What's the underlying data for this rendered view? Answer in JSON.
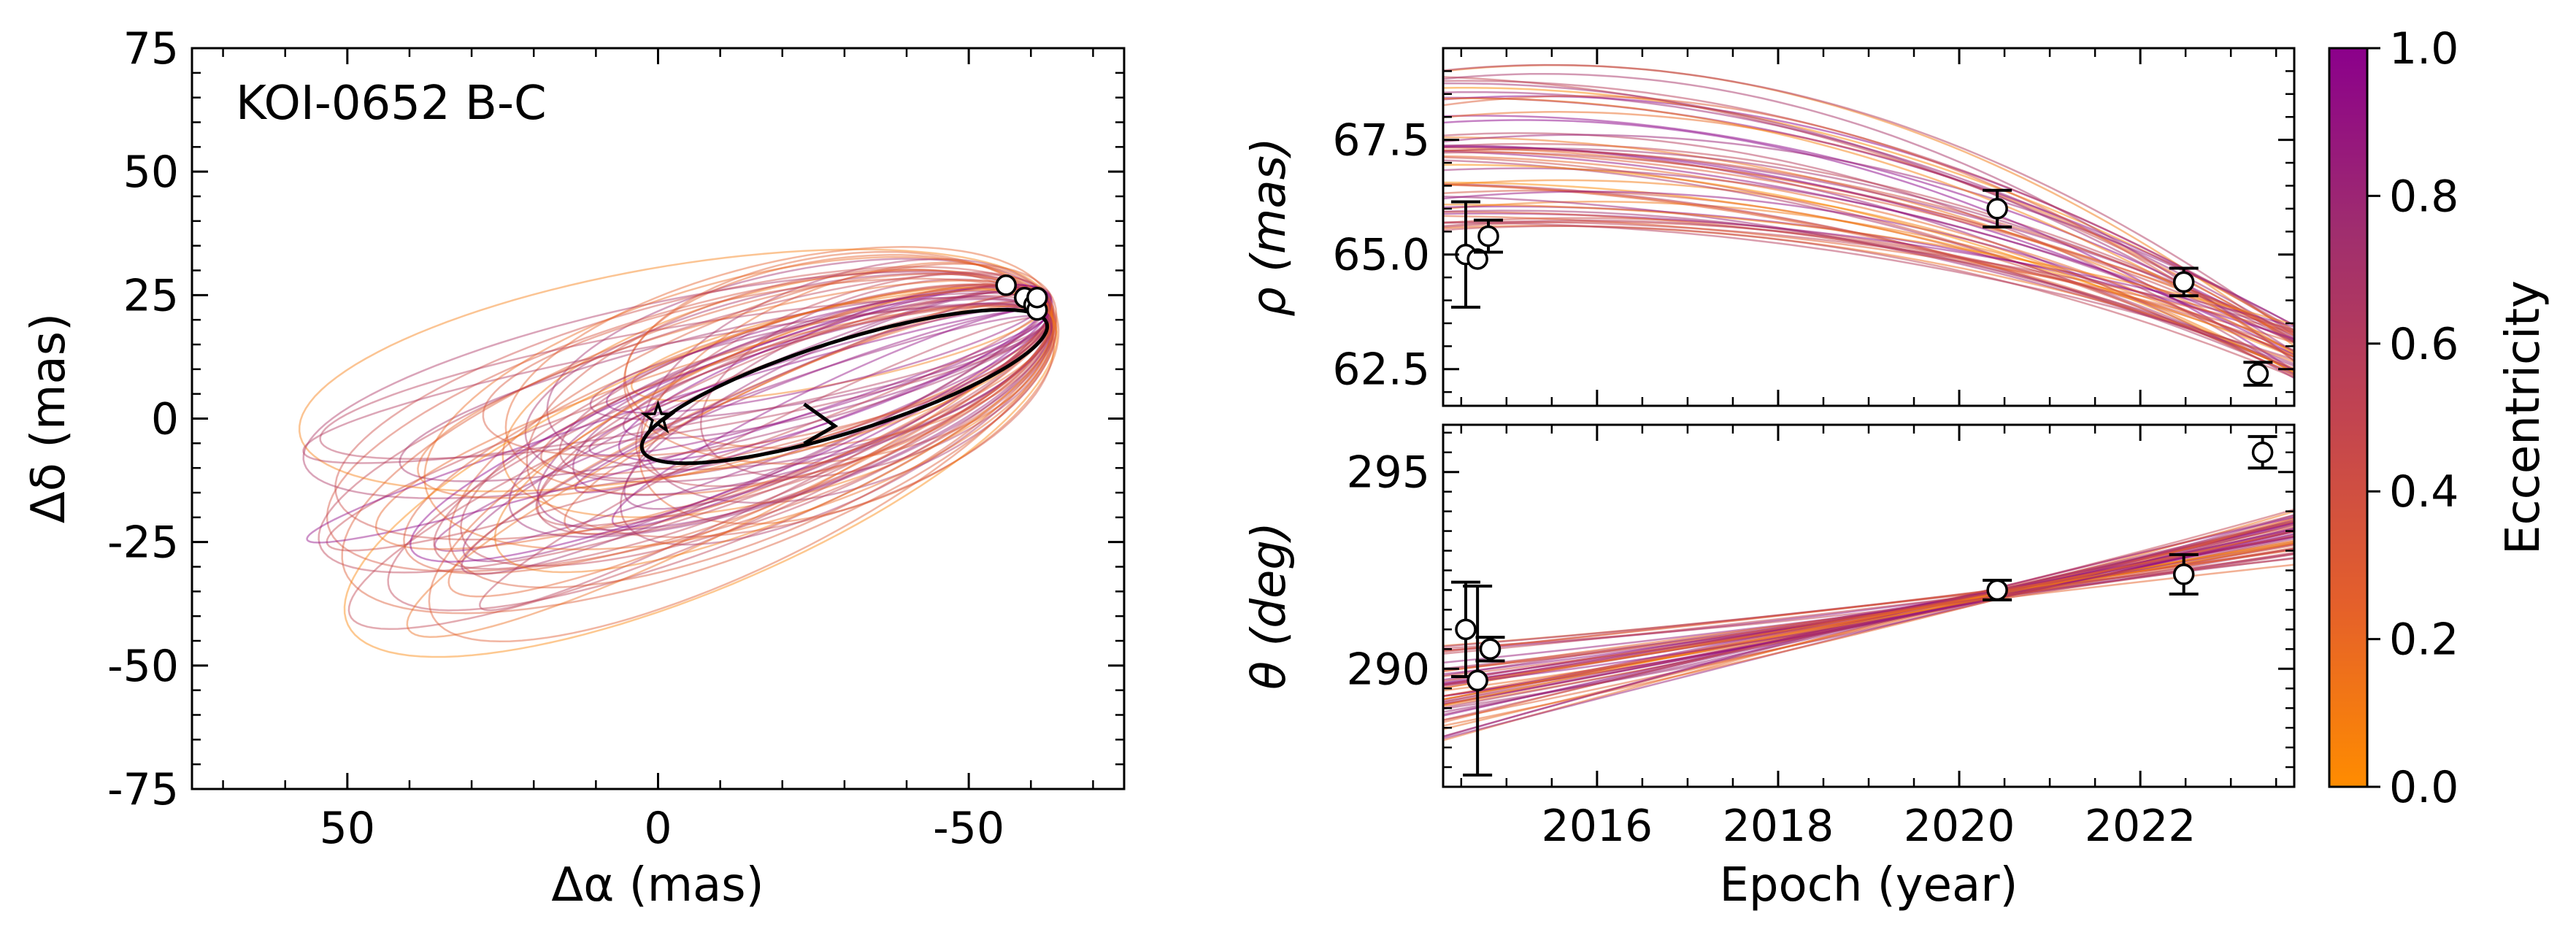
{
  "chart_data": [
    {
      "type": "scatter",
      "id": "orbit",
      "annotation": "KOI-0652 B-C",
      "xlabel": "Δα (mas)",
      "ylabel": "Δδ (mas)",
      "xlim": [
        75,
        -75
      ],
      "ylim": [
        -75,
        75
      ],
      "xticks": [
        50,
        0,
        -50
      ],
      "xtick_labels": [
        "50",
        "0",
        "-50"
      ],
      "yticks": [
        75,
        50,
        25,
        0,
        -25,
        -50,
        -75
      ],
      "ytick_labels": [
        "75",
        "50",
        "25",
        "0",
        "-25",
        "-50",
        "-75"
      ],
      "primary_star": {
        "x": 0,
        "y": 0
      },
      "best_fit_orbit": {
        "center_x": -30,
        "center_y": 6.5,
        "semi_major": 35,
        "semi_minor": 9,
        "pa_deg": 22
      },
      "observations": [
        {
          "x": -56,
          "y": 27
        },
        {
          "x": -59,
          "y": 24.5
        },
        {
          "x": -60.5,
          "y": 23
        },
        {
          "x": -61,
          "y": 22
        },
        {
          "x": -61,
          "y": 24.5
        }
      ],
      "direction": "arrow along orbit"
    },
    {
      "type": "line",
      "id": "separation",
      "ylabel": "ρ (mas)",
      "xlim": [
        2014.3,
        2023.7
      ],
      "ylim": [
        61.7,
        69.5
      ],
      "yticks": [
        62.5,
        65.0,
        67.5
      ],
      "ytick_labels": [
        "62.5",
        "65.0",
        "67.5"
      ],
      "points": [
        {
          "x": 2014.55,
          "y": 65.0,
          "err": 1.15
        },
        {
          "x": 2014.68,
          "y": 64.9,
          "err": 0.0
        },
        {
          "x": 2014.8,
          "y": 65.4,
          "err": 0.35
        },
        {
          "x": 2020.42,
          "y": 66.0,
          "err": 0.4
        },
        {
          "x": 2022.48,
          "y": 64.4,
          "err": 0.3
        },
        {
          "x": 2023.3,
          "y": 62.4,
          "err": 0.25
        }
      ]
    },
    {
      "type": "line",
      "id": "position-angle",
      "ylabel": "θ (deg)",
      "xlabel": "Epoch (year)",
      "xlim": [
        2014.3,
        2023.7
      ],
      "ylim": [
        287.0,
        296.2
      ],
      "xticks": [
        2016,
        2018,
        2020,
        2022
      ],
      "xtick_labels": [
        "2016",
        "2018",
        "2020",
        "2022"
      ],
      "yticks": [
        295,
        290
      ],
      "ytick_labels": [
        "295",
        "290"
      ],
      "points": [
        {
          "x": 2014.55,
          "y": 291.0,
          "err": 1.2
        },
        {
          "x": 2014.68,
          "y": 289.7,
          "err": 2.4
        },
        {
          "x": 2014.82,
          "y": 290.5,
          "err": 0.3
        },
        {
          "x": 2020.42,
          "y": 292.0,
          "err": 0.25
        },
        {
          "x": 2022.48,
          "y": 292.4,
          "err": 0.5
        },
        {
          "x": 2023.35,
          "y": 295.5,
          "err": 0.4
        }
      ]
    },
    {
      "type": "heatmap",
      "id": "colorbar",
      "label": "Eccentricity",
      "range": [
        0.0,
        1.0
      ],
      "ticks": [
        1.0,
        0.8,
        0.6,
        0.4,
        0.2,
        0.0
      ],
      "tick_labels": [
        "1.0",
        "0.8",
        "0.6",
        "0.4",
        "0.2",
        "0.0"
      ],
      "colors": [
        "#ff8c00",
        "#e45f2b",
        "#c24450",
        "#a02e6e",
        "#8b008b"
      ]
    }
  ]
}
